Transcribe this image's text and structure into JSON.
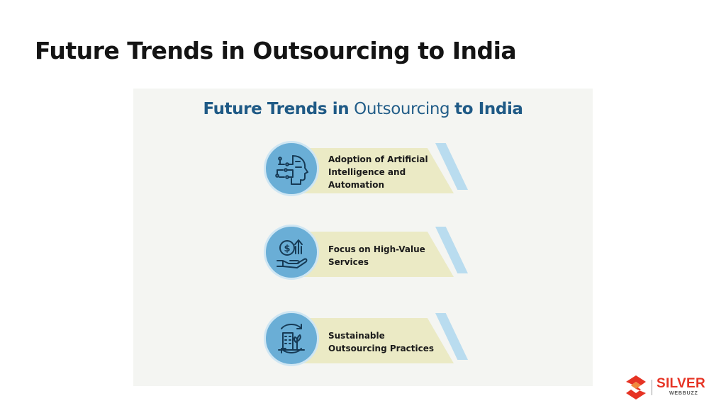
{
  "slide": {
    "title": "Future Trends in Outsourcing to India"
  },
  "infographic": {
    "title_part1": "Future Trends in",
    "title_part2": "Outsourcing",
    "title_part3": "to India",
    "colors": {
      "title_dark_blue": "#1f5a86",
      "circle_blue": "#6aaed6",
      "band_cream": "#ebeac5",
      "stripe_light_blue": "#b9dcef"
    },
    "trends": [
      {
        "icon": "ai-head-circuit-icon",
        "line1": "Adoption of Artificial",
        "line2": "Intelligence and",
        "line3": "Automation"
      },
      {
        "icon": "hand-coin-growth-icon",
        "line1": "Focus on High-Value",
        "line2": "Services"
      },
      {
        "icon": "sustainable-building-icon",
        "line1": "Sustainable",
        "line2": "Outsourcing Practices"
      }
    ]
  },
  "brand": {
    "name": "SILVER",
    "tagline": "WEBBUZZ",
    "logo_icon": "silver-webbuzz-logo-icon",
    "color": "#e63324"
  }
}
